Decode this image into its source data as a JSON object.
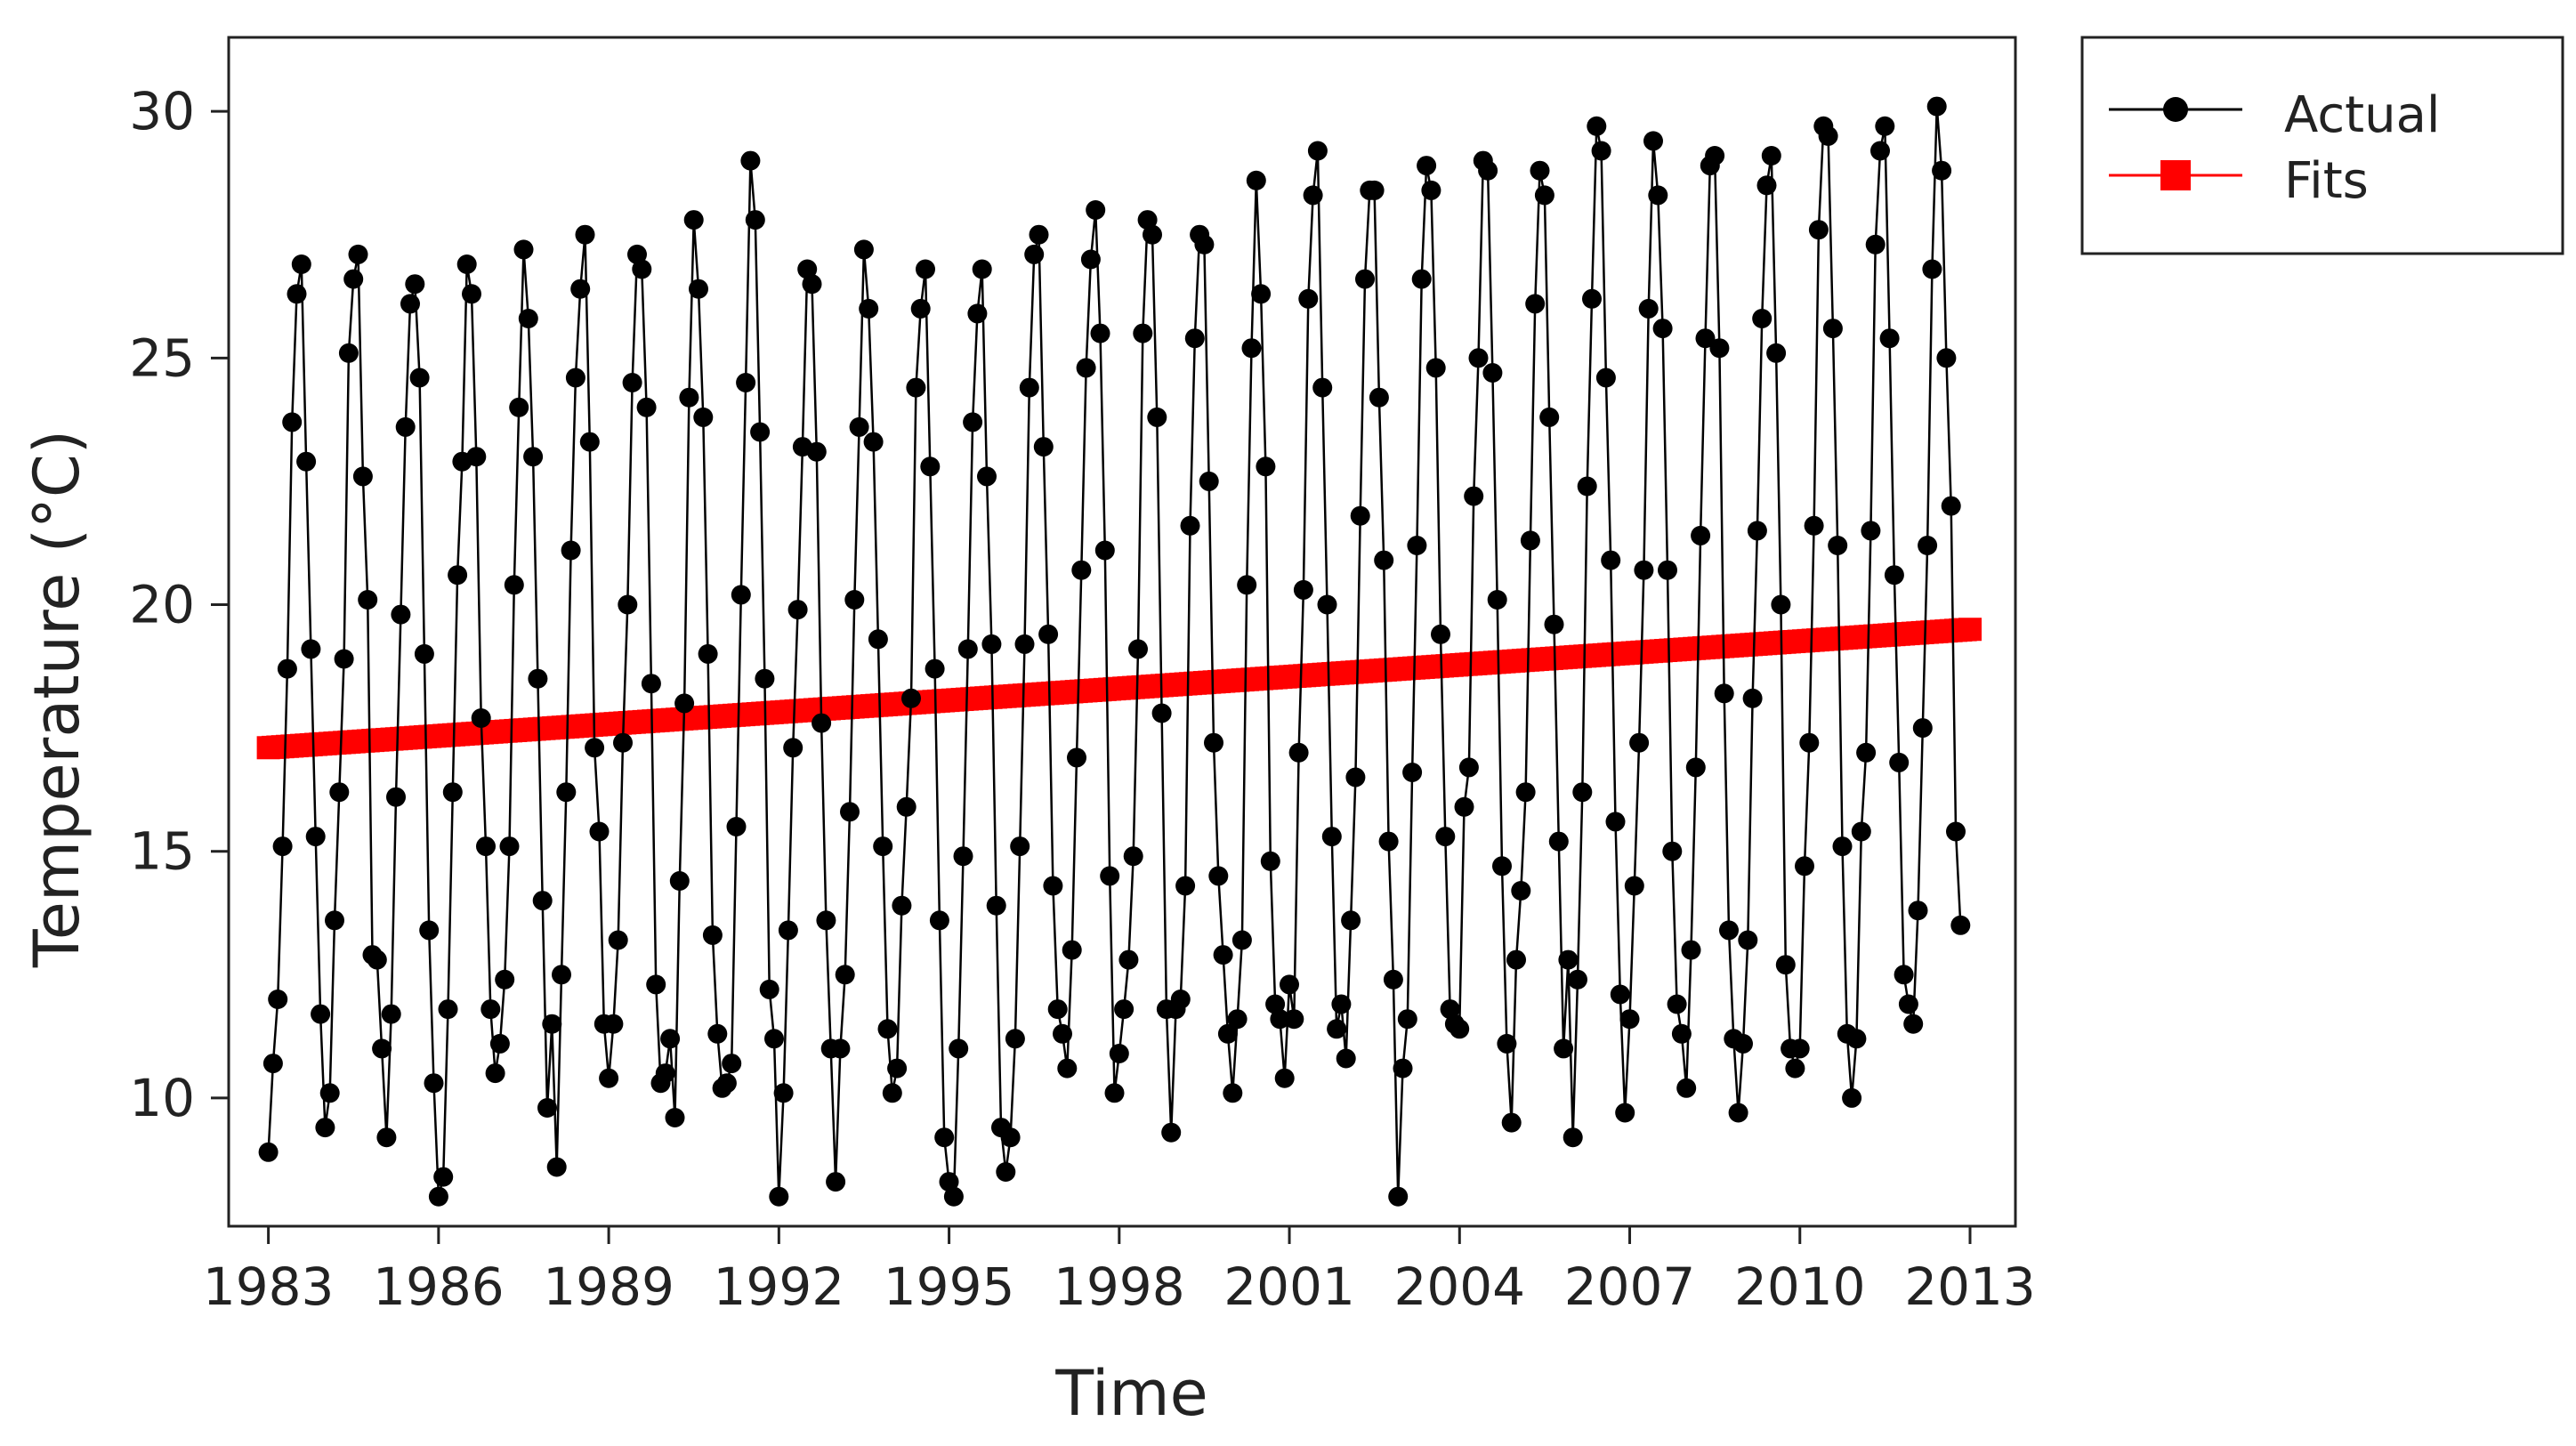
{
  "chart_data": {
    "type": "line",
    "title": "",
    "xlabel": "Time",
    "ylabel": "Temperature (°C)",
    "x_tick_labels": [
      "1983",
      "1986",
      "1989",
      "1992",
      "1995",
      "1998",
      "2001",
      "2004",
      "2007",
      "2010",
      "2013"
    ],
    "y_tick_labels": [
      "10",
      "15",
      "20",
      "25",
      "30"
    ],
    "xlim": [
      1982.3,
      2013.8
    ],
    "ylim": [
      7.4,
      31.5
    ],
    "grid": false,
    "legend_position": "top-right outside plot",
    "series": [
      {
        "name": "Actual",
        "color": "#000000",
        "marker": "circle",
        "x_start": 1983.0,
        "x_step": 0.08333,
        "values": [
          8.9,
          10.7,
          12.0,
          15.1,
          18.7,
          23.7,
          26.3,
          26.9,
          22.9,
          19.1,
          15.3,
          11.7,
          9.4,
          10.1,
          13.6,
          16.2,
          18.9,
          25.1,
          26.6,
          27.1,
          22.6,
          20.1,
          12.9,
          12.8,
          11.0,
          9.2,
          11.7,
          16.1,
          19.8,
          23.6,
          26.1,
          26.5,
          24.6,
          19.0,
          13.4,
          10.3,
          8.0,
          8.4,
          11.8,
          16.2,
          20.6,
          22.9,
          26.9,
          26.3,
          23.0,
          17.7,
          15.1,
          11.8,
          10.5,
          11.1,
          12.4,
          15.1,
          20.4,
          24.0,
          27.2,
          25.8,
          23.0,
          18.5,
          14.0,
          9.8,
          11.5,
          8.6,
          12.5,
          16.2,
          21.1,
          24.6,
          26.4,
          27.5,
          23.3,
          17.1,
          15.4,
          11.5,
          10.4,
          11.5,
          13.2,
          17.2,
          20.0,
          24.5,
          27.1,
          26.8,
          24.0,
          18.4,
          12.3,
          10.3,
          10.5,
          11.2,
          9.6,
          14.4,
          18.0,
          24.2,
          27.8,
          26.4,
          23.8,
          19.0,
          13.3,
          11.3,
          10.2,
          10.3,
          10.7,
          15.5,
          20.2,
          24.5,
          29.0,
          27.8,
          23.5,
          18.5,
          12.2,
          11.2,
          8.0,
          10.1,
          13.4,
          17.1,
          19.9,
          23.2,
          26.8,
          26.5,
          23.1,
          17.6,
          13.6,
          11.0,
          8.3,
          11.0,
          12.5,
          15.8,
          20.1,
          23.6,
          27.2,
          26.0,
          23.3,
          19.3,
          15.1,
          11.4,
          10.1,
          10.6,
          13.9,
          15.9,
          18.1,
          24.4,
          26.0,
          26.8,
          22.8,
          18.7,
          13.6,
          9.2,
          8.3,
          8.0,
          11.0,
          14.9,
          19.1,
          23.7,
          25.9,
          26.8,
          22.6,
          19.2,
          13.9,
          9.4,
          8.5,
          9.2,
          11.2,
          15.1,
          19.2,
          24.4,
          27.1,
          27.5,
          23.2,
          19.4,
          14.3,
          11.8,
          11.3,
          10.6,
          13.0,
          16.9,
          20.7,
          24.8,
          27.0,
          28.0,
          25.5,
          21.1,
          14.5,
          10.1,
          10.9,
          11.8,
          12.8,
          14.9,
          19.1,
          25.5,
          27.8,
          27.5,
          23.8,
          17.8,
          11.8,
          9.3,
          11.8,
          12.0,
          14.3,
          21.6,
          25.4,
          27.5,
          27.3,
          22.5,
          17.2,
          14.5,
          12.9,
          11.3,
          10.1,
          11.6,
          13.2,
          20.4,
          25.2,
          28.6,
          26.3,
          22.8,
          14.8,
          11.9,
          11.6,
          10.4,
          12.3,
          11.6,
          17.0,
          20.3,
          26.2,
          28.3,
          29.2,
          24.4,
          20.0,
          15.3,
          11.4,
          11.9,
          10.8,
          13.6,
          16.5,
          21.8,
          26.6,
          28.4,
          28.4,
          24.2,
          20.9,
          15.2,
          12.4,
          8.0,
          10.6,
          11.6,
          16.6,
          21.2,
          26.6,
          28.9,
          28.4,
          24.8,
          19.4,
          15.3,
          11.8,
          11.5,
          11.4,
          15.9,
          16.7,
          22.2,
          25.0,
          29.0,
          28.8,
          24.7,
          20.1,
          14.7,
          11.1,
          9.5,
          12.8,
          14.2,
          16.2,
          21.3,
          26.1,
          28.8,
          28.3,
          23.8,
          19.6,
          15.2,
          11.0,
          12.8,
          9.2,
          12.4,
          16.2,
          22.4,
          26.2,
          29.7,
          29.2,
          24.6,
          20.9,
          15.6,
          12.1,
          9.7,
          11.6,
          14.3,
          17.2,
          20.7,
          26.0,
          29.4,
          28.3,
          25.6,
          20.7,
          15.0,
          11.9,
          11.3,
          10.2,
          13.0,
          16.7,
          21.4,
          25.4,
          28.9,
          29.1,
          25.2,
          18.2,
          13.4,
          11.2,
          9.7,
          11.1,
          13.2,
          18.1,
          21.5,
          25.8,
          28.5,
          29.1,
          25.1,
          20.0,
          12.7,
          11.0,
          10.6,
          11.0,
          14.7,
          17.2,
          21.6,
          27.6,
          29.7,
          29.5,
          25.6,
          21.2,
          15.1,
          11.3,
          10.0,
          11.2,
          15.4,
          17.0,
          21.5,
          27.3,
          29.2,
          29.7,
          25.4,
          20.6,
          16.8,
          12.5,
          11.9,
          11.5,
          13.8,
          17.5,
          21.2,
          26.8,
          30.1,
          28.8,
          25.0,
          22.0,
          15.4,
          13.5
        ]
      },
      {
        "name": "Fits",
        "color": "#ff0000",
        "marker": "square",
        "x_start": 1983.0,
        "x_end": 2013.0,
        "y_start": 17.1,
        "y_end": 19.5
      }
    ]
  }
}
